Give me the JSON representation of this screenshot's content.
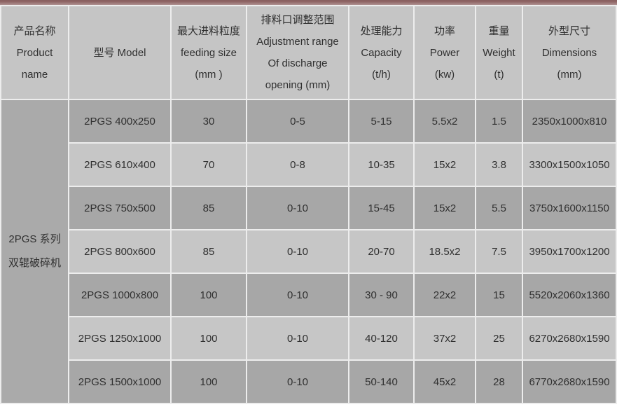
{
  "colors": {
    "accent_top": "#876060",
    "accent_bottom": "#b09292",
    "header_bg": "#c5c5c5",
    "row_dark_bg": "#a7a7a7",
    "row_light_bg": "#c6c6c6",
    "merged_bg": "#aaaaaa",
    "divider": "#ededed",
    "text": "#303030"
  },
  "table": {
    "columns": [
      {
        "id": "product_name",
        "lines": [
          "产品名称",
          "Product",
          "name"
        ]
      },
      {
        "id": "model",
        "lines": [
          "型号 Model"
        ]
      },
      {
        "id": "feeding_size",
        "lines": [
          "最大进料粒度",
          "feeding size",
          "(mm )"
        ]
      },
      {
        "id": "adjustment_range",
        "lines": [
          "排料口调整范围",
          "Adjustment range",
          "Of discharge",
          "opening (mm)"
        ]
      },
      {
        "id": "capacity",
        "lines": [
          "处理能力",
          "Capacity",
          "(t/h)"
        ]
      },
      {
        "id": "power",
        "lines": [
          "功率",
          "Power",
          "(kw)"
        ]
      },
      {
        "id": "weight",
        "lines": [
          "重量",
          "Weight",
          "(t)"
        ]
      },
      {
        "id": "dimensions",
        "lines": [
          "外型尺寸",
          "Dimensions",
          "(mm)"
        ]
      }
    ],
    "merged_product_cell": {
      "lines": [
        "2PGS 系列",
        "双辊破碎机"
      ]
    },
    "row_field_order": [
      "model",
      "feeding_size",
      "adjustment_range",
      "capacity",
      "power",
      "weight",
      "dimensions"
    ],
    "rows": [
      {
        "model": "2PGS 400x250",
        "feeding_size": "30",
        "adjustment_range": "0-5",
        "capacity": "5-15",
        "power": "5.5x2",
        "weight": "1.5",
        "dimensions": "2350x1000x810"
      },
      {
        "model": "2PGS 610x400",
        "feeding_size": "70",
        "adjustment_range": "0-8",
        "capacity": "10-35",
        "power": "15x2",
        "weight": "3.8",
        "dimensions": "3300x1500x1050"
      },
      {
        "model": "2PGS 750x500",
        "feeding_size": "85",
        "adjustment_range": "0-10",
        "capacity": "15-45",
        "power": "15x2",
        "weight": "5.5",
        "dimensions": "3750x1600x1150"
      },
      {
        "model": "2PGS 800x600",
        "feeding_size": "85",
        "adjustment_range": "0-10",
        "capacity": "20-70",
        "power": "18.5x2",
        "weight": "7.5",
        "dimensions": "3950x1700x1200"
      },
      {
        "model": "2PGS 1000x800",
        "feeding_size": "100",
        "adjustment_range": "0-10",
        "capacity": "30 - 90",
        "power": "22x2",
        "weight": "15",
        "dimensions": "5520x2060x1360"
      },
      {
        "model": "2PGS 1250x1000",
        "feeding_size": "100",
        "adjustment_range": "0-10",
        "capacity": "40-120",
        "power": "37x2",
        "weight": "25",
        "dimensions": "6270x2680x1590"
      },
      {
        "model": "2PGS 1500x1000",
        "feeding_size": "100",
        "adjustment_range": "0-10",
        "capacity": "50-140",
        "power": "45x2",
        "weight": "28",
        "dimensions": "6770x2680x1590"
      }
    ]
  }
}
